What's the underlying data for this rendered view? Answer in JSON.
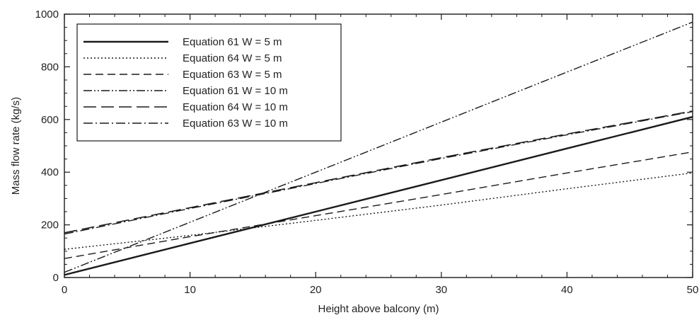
{
  "chart_data": {
    "type": "line",
    "title": "",
    "xlabel": "Height above balcony (m)",
    "ylabel": "Mass flow rate (kg/s)",
    "xlim": [
      0,
      50
    ],
    "ylim": [
      0,
      1000
    ],
    "xticks": [
      0,
      10,
      20,
      30,
      40,
      50
    ],
    "xtick_labels": [
      "0",
      "10",
      "20",
      "30",
      "40",
      "50"
    ],
    "yticks": [
      0,
      200,
      400,
      600,
      800,
      1000
    ],
    "ytick_labels": [
      "0",
      "200",
      "400",
      "600",
      "800",
      "1000"
    ],
    "grid": false,
    "legend_position": "top-left",
    "series": [
      {
        "name": "Equation 61 W = 5 m",
        "style": "solid",
        "color": "#1a1a1a",
        "x": [
          0,
          10,
          20,
          30,
          40,
          50
        ],
        "y": [
          10,
          130,
          250,
          370,
          490,
          610
        ]
      },
      {
        "name": "Equation 64 W = 5 m",
        "style": "dotted",
        "color": "#1a1a1a",
        "x": [
          0,
          10,
          20,
          30,
          40,
          50
        ],
        "y": [
          107,
          160,
          217,
          275,
          337,
          397
        ]
      },
      {
        "name": "Equation 63 W = 5 m",
        "style": "dashed",
        "color": "#1a1a1a",
        "x": [
          0,
          10,
          20,
          30,
          40,
          50
        ],
        "y": [
          72,
          155,
          235,
          315,
          397,
          477
        ]
      },
      {
        "name": "Equation 61 W = 10 m",
        "style": "dash-dot-dot",
        "color": "#1a1a1a",
        "x": [
          0,
          10,
          20,
          30,
          40,
          50
        ],
        "y": [
          20,
          210,
          400,
          590,
          780,
          970
        ]
      },
      {
        "name": "Equation 64 W = 10 m",
        "style": "long-dash",
        "color": "#1a1a1a",
        "x": [
          0,
          10,
          20,
          30,
          40,
          50
        ],
        "y": [
          170,
          265,
          360,
          455,
          545,
          632
        ]
      },
      {
        "name": "Equation 63 W = 10 m",
        "style": "dash-dot",
        "color": "#1a1a1a",
        "x": [
          0,
          10,
          20,
          30,
          40,
          50
        ],
        "y": [
          165,
          262,
          357,
          452,
          542,
          630
        ]
      }
    ]
  }
}
